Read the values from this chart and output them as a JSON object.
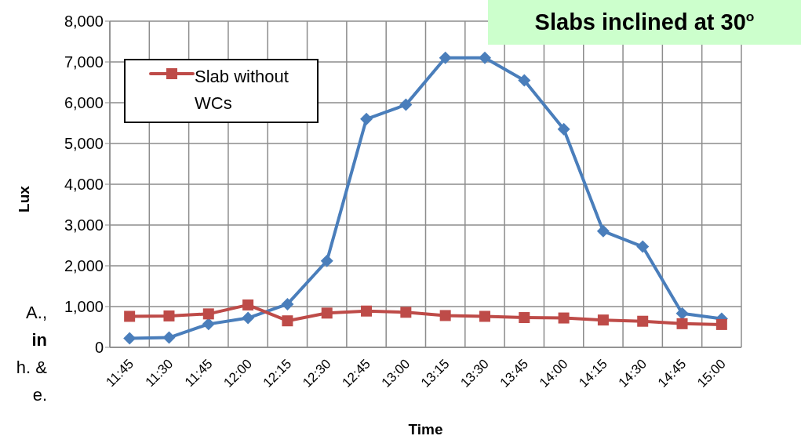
{
  "chart_data": {
    "type": "line",
    "title": "Slabs inclined at 30$^{o}$",
    "xlabel": "Time",
    "ylabel": "Lux",
    "categories": [
      "11:45",
      "11:30",
      "11:45",
      "12:00",
      "12:15",
      "12:30",
      "12:45",
      "13:00",
      "13:15",
      "13:30",
      "13:45",
      "14:00",
      "14:15",
      "14:30",
      "14:45",
      "15:00"
    ],
    "series": [
      {
        "color": "#4a7ebb",
        "marker": "diamond",
        "values": [
          220,
          240,
          570,
          720,
          1060,
          2120,
          5600,
          5950,
          7100,
          7100,
          6550,
          5350,
          2850,
          2470,
          830,
          700
        ]
      },
      {
        "name": "Slab without WCs",
        "color": "#be4b48",
        "marker": "square",
        "values": [
          760,
          770,
          820,
          1040,
          650,
          840,
          890,
          860,
          780,
          760,
          730,
          720,
          670,
          640,
          580,
          560
        ]
      }
    ],
    "ylim": [
      0,
      8000
    ],
    "yticks": [
      0,
      {
        "value": 1000,
        "label": "1,000"
      },
      {
        "value": 2000,
        "label": "2,000"
      },
      {
        "value": 3000,
        "label": "3,000"
      },
      {
        "value": 4000,
        "label": "4,000"
      },
      {
        "value": 5000,
        "label": "5,000"
      },
      {
        "value": 6000,
        "label": "6,000"
      },
      {
        "value": 7000,
        "label": "7,000"
      },
      {
        "value": 8000,
        "label": "8,000"
      }
    ],
    "grid": true,
    "legend": "top left",
    "line_style": "solid",
    "annotations": [
      "A.,",
      "in",
      "h. &",
      "e."
    ]
  }
}
